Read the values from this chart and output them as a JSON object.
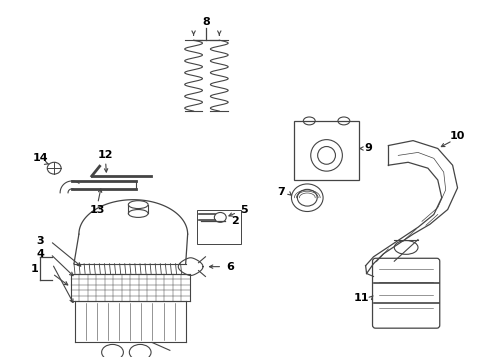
{
  "background_color": "#ffffff",
  "line_color": "#444444",
  "text_color": "#000000",
  "fig_width": 4.89,
  "fig_height": 3.6,
  "dpi": 100
}
